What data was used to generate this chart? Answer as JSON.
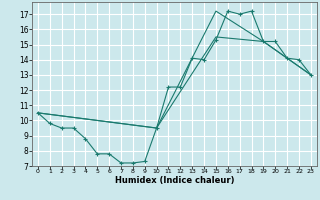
{
  "xlabel": "Humidex (Indice chaleur)",
  "ylabel": "",
  "bg_color": "#cce8ec",
  "grid_color": "#ffffff",
  "line_color": "#1a7a6e",
  "xlim": [
    -0.5,
    23.5
  ],
  "ylim": [
    7,
    17.8
  ],
  "xticks": [
    0,
    1,
    2,
    3,
    4,
    5,
    6,
    7,
    8,
    9,
    10,
    11,
    12,
    13,
    14,
    15,
    16,
    17,
    18,
    19,
    20,
    21,
    22,
    23
  ],
  "yticks": [
    7,
    8,
    9,
    10,
    11,
    12,
    13,
    14,
    15,
    16,
    17
  ],
  "line1_x": [
    0,
    1,
    2,
    3,
    4,
    5,
    6,
    7,
    8,
    9,
    10,
    11,
    12,
    13,
    14,
    15,
    16,
    17,
    18,
    19,
    20,
    21,
    22,
    23
  ],
  "line1_y": [
    10.5,
    9.8,
    9.5,
    9.5,
    8.8,
    7.8,
    7.8,
    7.2,
    7.2,
    7.3,
    9.5,
    12.2,
    12.2,
    14.1,
    14.0,
    15.3,
    17.2,
    17.0,
    17.2,
    15.2,
    15.2,
    14.1,
    14.0,
    13.0
  ],
  "line2_x": [
    0,
    10,
    15,
    19,
    23
  ],
  "line2_y": [
    10.5,
    9.5,
    15.5,
    15.2,
    13.0
  ],
  "line3_x": [
    0,
    10,
    15,
    19,
    23
  ],
  "line3_y": [
    10.5,
    9.5,
    17.2,
    15.2,
    13.0
  ]
}
